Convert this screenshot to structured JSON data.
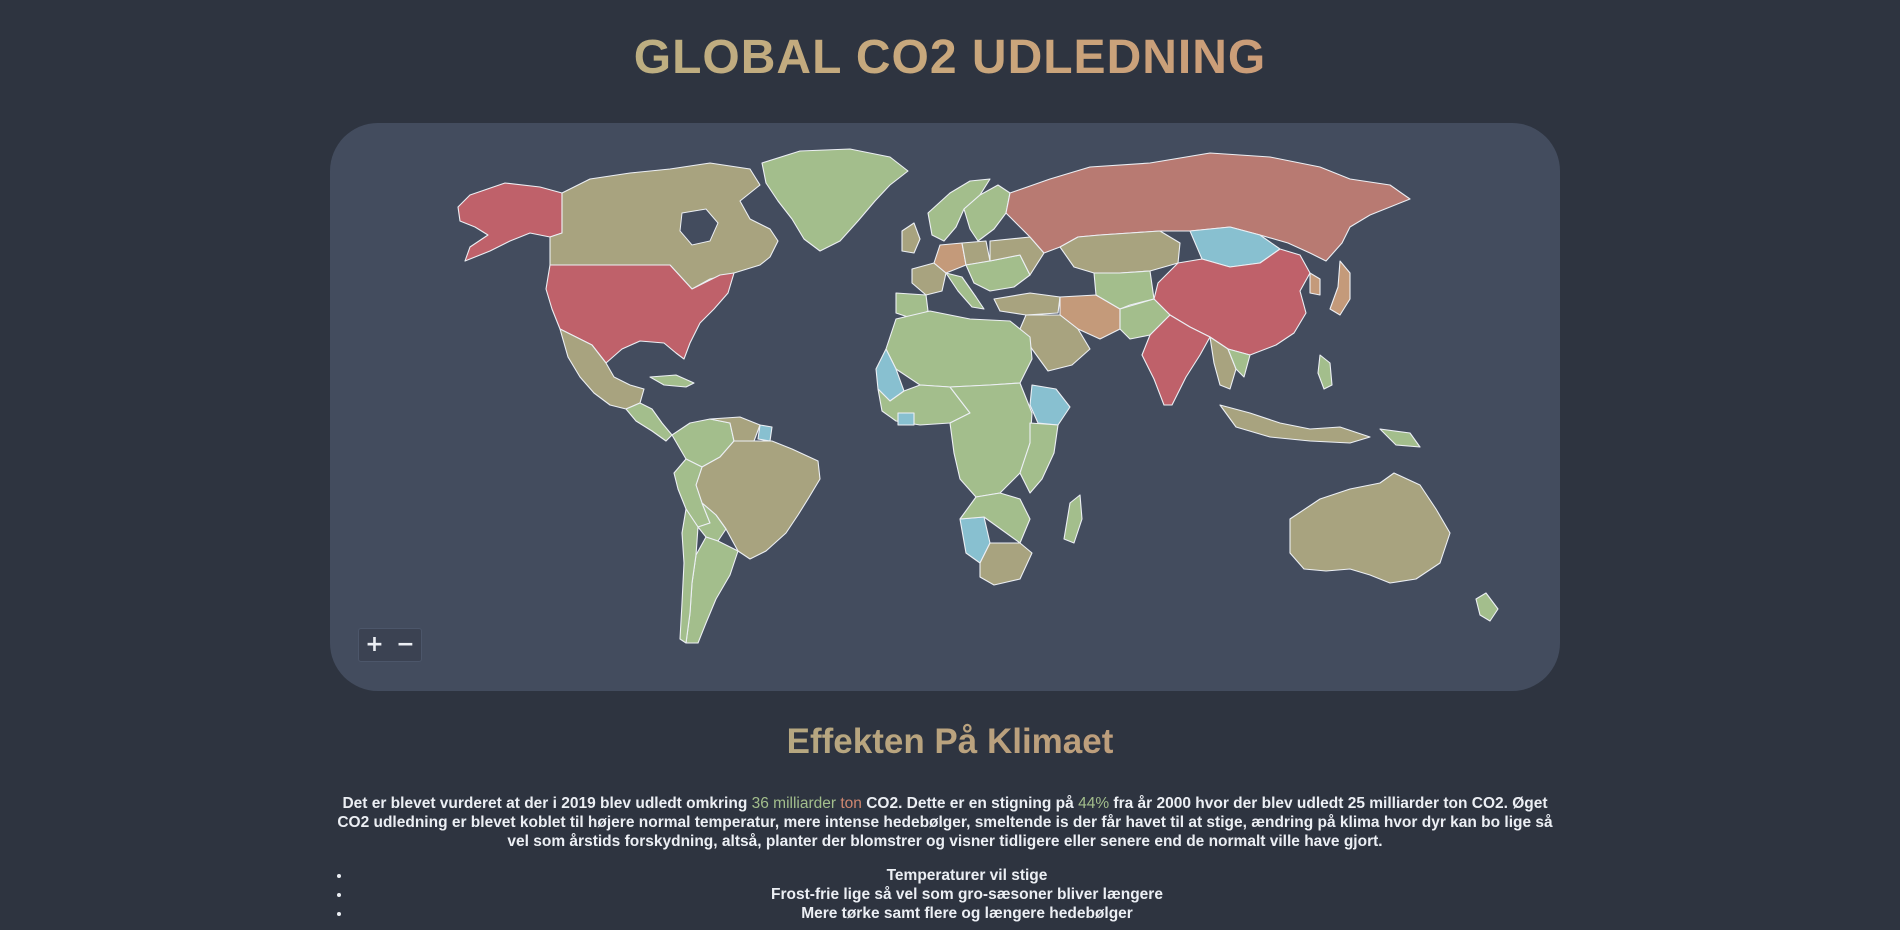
{
  "header": {
    "title": "GLOBAL CO2 UDLEDNING"
  },
  "map": {
    "zoom_in_label": "+",
    "zoom_out_label": "−",
    "colors": {
      "background": "#434c5e",
      "highest": "#bf616a",
      "high": "#b87a72",
      "medium": "#c49a7a",
      "low_medium": "#a8a37f",
      "low": "#a3be8c",
      "lowest": "#88c0d0",
      "border": "#eceff4"
    }
  },
  "effects": {
    "title": "Effekten På Klimaet",
    "intro_part1": "Det er blevet vurderet at der i 2019 blev udledt omkring ",
    "highlight_amount_1": "36 milliarder",
    "highlight_amount_2": " ton",
    "intro_part2": " CO2. Dette er en stigning på ",
    "highlight_percent": "44%",
    "intro_part3": " fra år 2000 hvor der blev udledt 25 milliarder ton CO2. Øget CO2 udledning er blevet koblet til højere normal temperatur, mere intense hedebølger, smeltende is der får havet til at stige, ændring på klima hvor dyr kan bo lige så vel som årstids forskydning, altså, planter der blomstrer og visner tidligere eller senere end de normalt ville have gjort.",
    "list": [
      "Temperaturer vil stige",
      "Frost-frie lige så vel som gro-sæsoner bliver længere",
      "Mere tørke samt flere og længere hedebølger"
    ]
  }
}
